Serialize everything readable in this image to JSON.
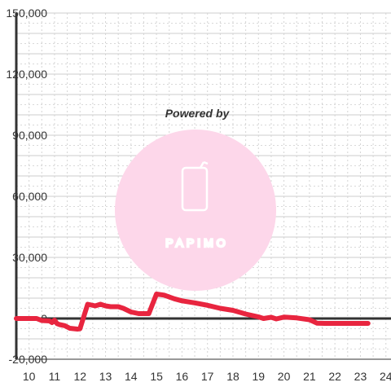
{
  "watermark": {
    "caption": "Powered by",
    "brand": "PAPIMO",
    "colors": {
      "circle": "#fdd7ea",
      "caption": "#ffd6ec",
      "logo": "#ffffff"
    },
    "icon": "phone-icon"
  },
  "chart_data": {
    "type": "line",
    "title": "",
    "xlabel": "",
    "ylabel": "",
    "xlim": [
      9.5,
      24.2
    ],
    "ylim": [
      -20000,
      150000
    ],
    "x_ticks": [
      10,
      11,
      12,
      13,
      14,
      15,
      16,
      17,
      18,
      19,
      20,
      21,
      22,
      23,
      24
    ],
    "y_ticks": [
      -20000,
      0,
      30000,
      60000,
      90000,
      120000,
      150000
    ],
    "y_tick_labels": [
      "-20,000",
      "0",
      "30,000",
      "60,000",
      "90,000",
      "120,000",
      "150,000"
    ],
    "grid": {
      "major_solid": true,
      "minor_dashed": true
    },
    "series": [
      {
        "color": "#e8253f",
        "points": [
          [
            9.5,
            0
          ],
          [
            10.0,
            0
          ],
          [
            10.3,
            0
          ],
          [
            10.5,
            -1000
          ],
          [
            10.8,
            -1200
          ],
          [
            10.9,
            -2000
          ],
          [
            11.0,
            -800
          ],
          [
            11.1,
            -2500
          ],
          [
            11.2,
            -3000
          ],
          [
            11.4,
            -3500
          ],
          [
            11.6,
            -4800
          ],
          [
            11.9,
            -5200
          ],
          [
            12.0,
            -5000
          ],
          [
            12.3,
            7000
          ],
          [
            12.6,
            6200
          ],
          [
            12.8,
            7000
          ],
          [
            13.0,
            6200
          ],
          [
            13.2,
            5800
          ],
          [
            13.5,
            5800
          ],
          [
            13.7,
            5000
          ],
          [
            14.0,
            3200
          ],
          [
            14.3,
            2400
          ],
          [
            14.7,
            2400
          ],
          [
            15.0,
            12000
          ],
          [
            15.3,
            11500
          ],
          [
            15.7,
            9700
          ],
          [
            16.0,
            8700
          ],
          [
            16.5,
            7700
          ],
          [
            17.0,
            6500
          ],
          [
            17.5,
            5000
          ],
          [
            18.0,
            4000
          ],
          [
            18.5,
            2200
          ],
          [
            19.0,
            800
          ],
          [
            19.2,
            0
          ],
          [
            19.5,
            600
          ],
          [
            19.7,
            -200
          ],
          [
            20.0,
            700
          ],
          [
            20.5,
            300
          ],
          [
            21.0,
            -600
          ],
          [
            21.3,
            -2300
          ],
          [
            21.6,
            -2400
          ],
          [
            22.0,
            -2400
          ],
          [
            22.5,
            -2400
          ],
          [
            23.0,
            -2400
          ],
          [
            23.3,
            -2400
          ]
        ]
      }
    ]
  }
}
